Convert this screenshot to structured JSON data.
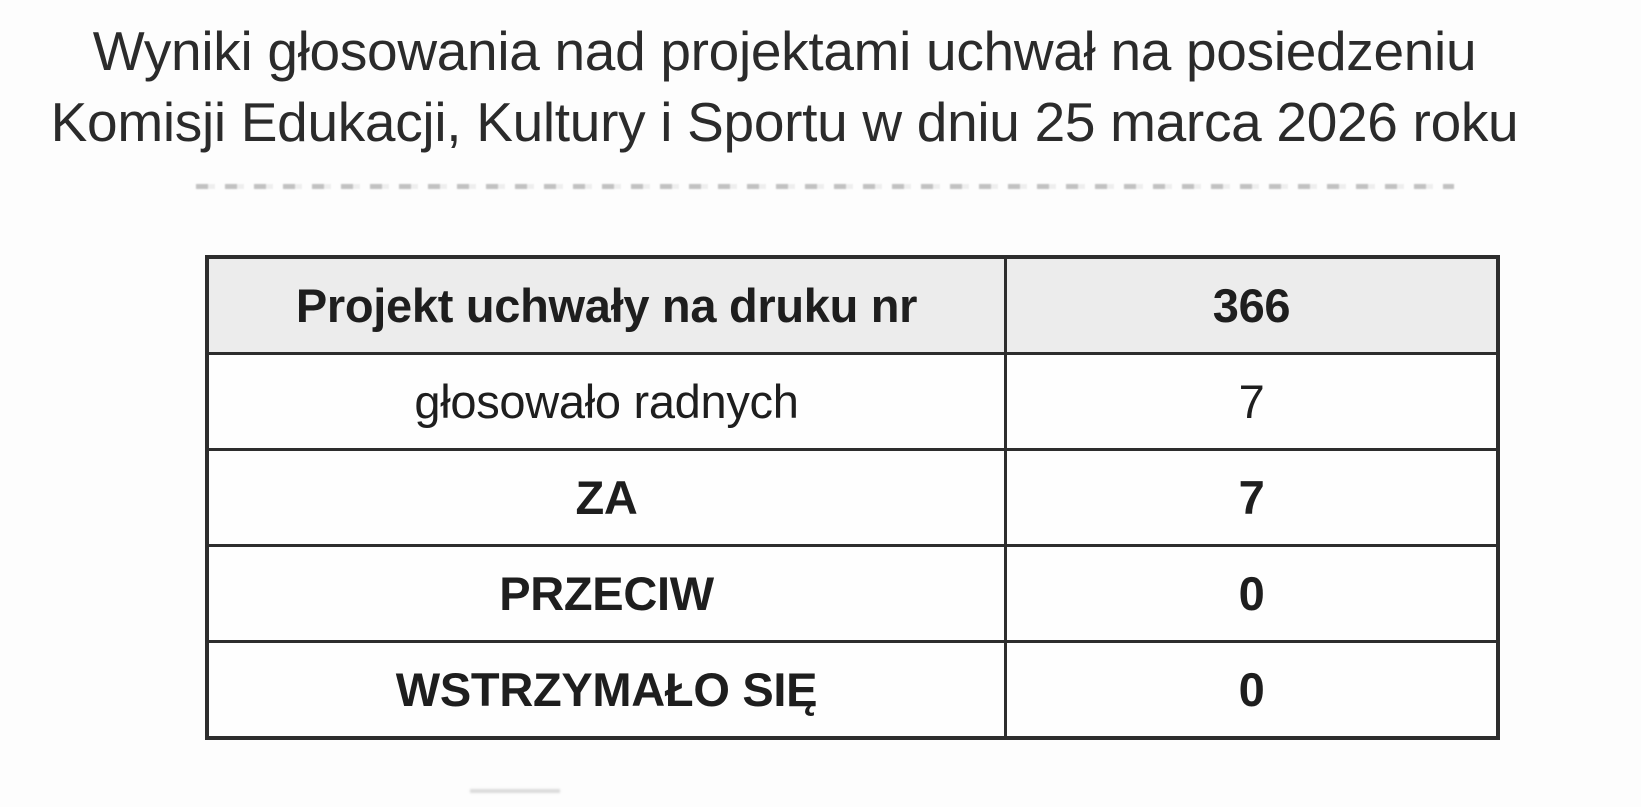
{
  "title": {
    "line1": "Wyniki głosowania nad projektami uchwał na posiedzeniu",
    "line2": "Komisji Edukacji, Kultury i Sportu w dniu 25 marca 2026 roku"
  },
  "table": {
    "rows": [
      {
        "label": "Projekt uchwały na druku nr",
        "value": "366"
      },
      {
        "label": "głosowało radnych",
        "value": "7"
      },
      {
        "label": "ZA",
        "value": "7"
      },
      {
        "label": "PRZECIW",
        "value": "0"
      },
      {
        "label": "WSTRZYMAŁO SIĘ",
        "value": "0"
      }
    ]
  },
  "colors": {
    "header_row_bg": "#ececec",
    "table_border": "#2d2d2d",
    "text": "#1e1e1e",
    "page_bg": "#fdfdfd"
  }
}
